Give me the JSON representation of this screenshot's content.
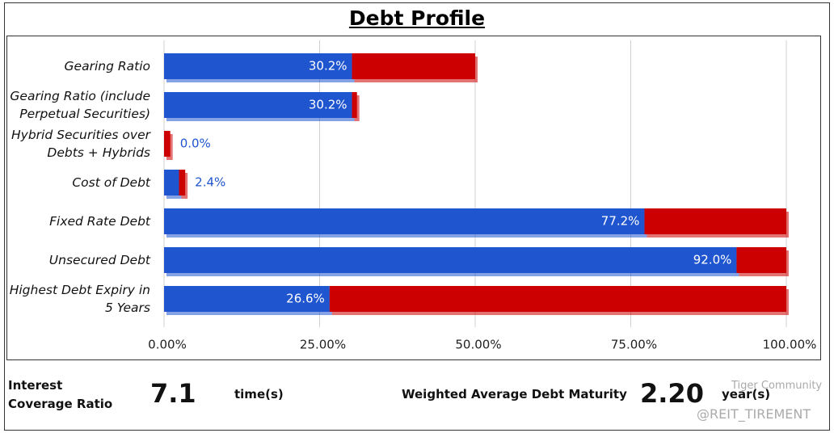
{
  "chart_data": {
    "type": "stacked-bar-horizontal",
    "title": "Debt Profile",
    "categories": [
      "Gearing Ratio",
      "Gearing Ratio (include Perpetual Securities)",
      "Hybrid Securities over Debts + Hybrids",
      "Cost of Debt",
      "Fixed Rate Debt",
      "Unsecured Debt",
      "Highest Debt Expiry in 5 Years"
    ],
    "series": [
      {
        "color": "#1f55cf",
        "values": [
          30.2,
          30.2,
          0.0,
          2.4,
          77.2,
          92.0,
          26.6
        ],
        "value_labels": [
          "30.2%",
          "30.2%",
          "0.0%",
          "2.4%",
          "77.2%",
          "92.0%",
          "26.6%"
        ]
      },
      {
        "color": "#cc0000",
        "values": [
          19.8,
          0.8,
          1.0,
          1.0,
          22.8,
          8.0,
          73.4
        ]
      }
    ],
    "xlim": [
      0,
      100
    ],
    "xticks": [
      {
        "value": 0,
        "label": "0.00%"
      },
      {
        "value": 25,
        "label": "25.00%"
      },
      {
        "value": 50,
        "label": "50.00%"
      },
      {
        "value": 75,
        "label": "75.00%"
      },
      {
        "value": 100,
        "label": "100.00%"
      }
    ],
    "grid": true
  },
  "footer": {
    "coverage_label": "Interest Coverage Ratio",
    "coverage_value": "7.1",
    "coverage_unit": "time(s)",
    "maturity_label": "Weighted Average Debt Maturity",
    "maturity_value": "2.20",
    "maturity_unit": "year(s)",
    "watermark_1": "Tiger Community",
    "watermark_2": "@REIT_TIREMENT"
  }
}
